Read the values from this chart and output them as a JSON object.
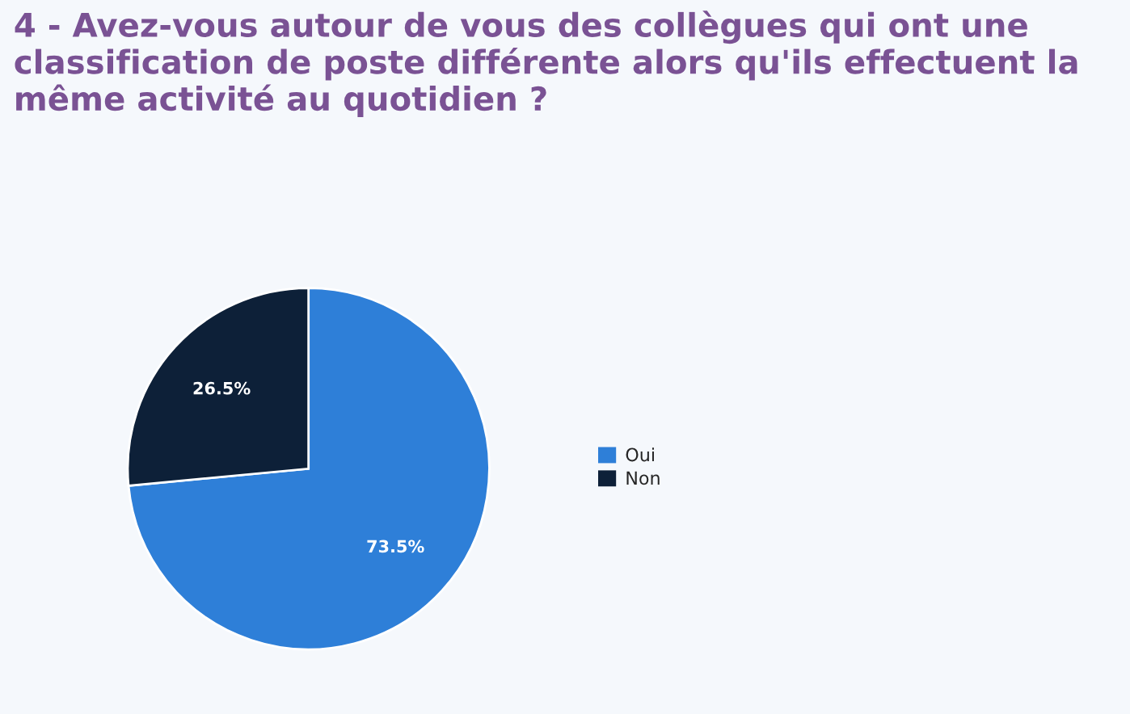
{
  "chart_data": {
    "type": "pie",
    "title": "4 - Avez-vous autour de vous des collègues qui ont une classification de poste différente alors qu'ils effectuent la même activité au quotidien ?",
    "categories": [
      "Oui",
      "Non"
    ],
    "values": [
      73.5,
      26.5
    ],
    "colors": [
      "#2e7fd8",
      "#0d2038"
    ],
    "value_labels": [
      "73.5%",
      "26.5%"
    ],
    "legend": "right"
  }
}
